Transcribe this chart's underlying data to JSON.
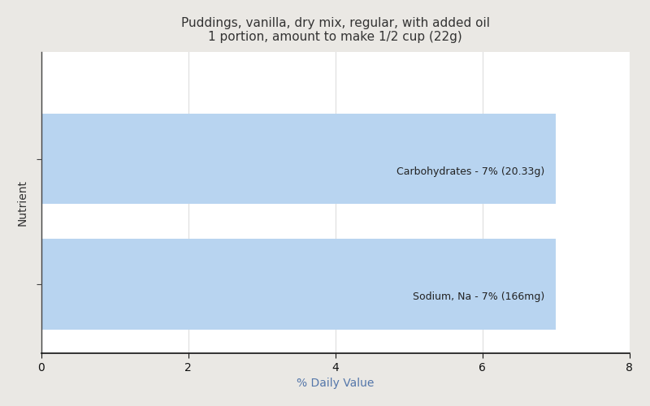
{
  "title_line1": "Puddings, vanilla, dry mix, regular, with added oil",
  "title_line2": "1 portion, amount to make 1/2 cup (22g)",
  "xlabel": "% Daily Value",
  "ylabel": "Nutrient",
  "xlim": [
    0,
    8
  ],
  "xticks": [
    0,
    2,
    4,
    6,
    8
  ],
  "bars": [
    {
      "label": "Carbohydrates - 7% (20.33g)",
      "value": 7,
      "y": 1
    },
    {
      "label": "Sodium, Na - 7% (166mg)",
      "value": 7,
      "y": 0
    }
  ],
  "bar_color": "#b8d4f0",
  "bar_height": 0.72,
  "label_color": "#222222",
  "label_fontsize": 9,
  "title_color": "#333333",
  "axis_label_color": "#333333",
  "xlabel_color": "#5577aa",
  "background_color": "#eae8e4",
  "plot_background_color": "#ffffff",
  "grid_color": "#dddddd",
  "title_fontsize": 11,
  "xlabel_fontsize": 10,
  "ylabel_fontsize": 10
}
